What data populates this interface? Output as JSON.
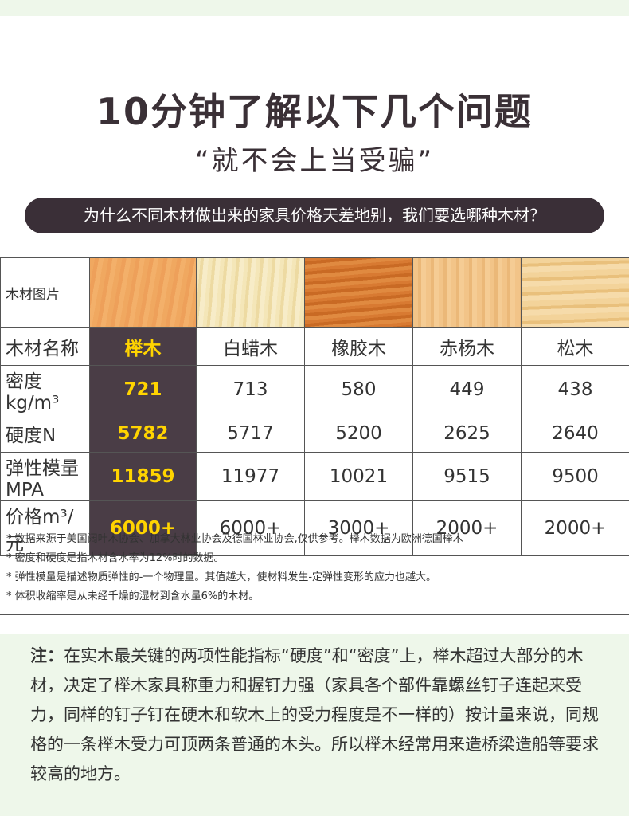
{
  "title": "10分钟了解以下几个问题",
  "subtitle": "“就不会上当受骗”",
  "question": "为什么不同木材做出来的家具价格天差地别，我们要选哪种木材？",
  "table": {
    "row_labels": {
      "image": "木材图片",
      "name": "木材名称",
      "density": "密度kg/m³",
      "hardness": "硬度N",
      "modulus": "弹性模量MPA",
      "price": "价格m³/元"
    },
    "woods": [
      {
        "name": "榉木",
        "density": "721",
        "hardness": "5782",
        "modulus": "11859",
        "price": "6000+",
        "highlight": true,
        "swatch": "beech-wood-texture"
      },
      {
        "name": "白蜡木",
        "density": "713",
        "hardness": "5717",
        "modulus": "11977",
        "price": "6000+",
        "highlight": false,
        "swatch": "ash-wood-texture"
      },
      {
        "name": "橡胶木",
        "density": "580",
        "hardness": "5200",
        "modulus": "10021",
        "price": "3000+",
        "highlight": false,
        "swatch": "rubberwood-texture"
      },
      {
        "name": "赤杨木",
        "density": "449",
        "hardness": "2625",
        "modulus": "9515",
        "price": "2000+",
        "highlight": false,
        "swatch": "alder-wood-texture"
      },
      {
        "name": "松木",
        "density": "438",
        "hardness": "2640",
        "modulus": "9500",
        "price": "2000+",
        "highlight": false,
        "swatch": "pine-wood-texture"
      }
    ]
  },
  "notes": [
    "* 数据来源于美国阔叶木协会、加拿大林业协会及德国林业协会,仅供参考。榉木数据为欧洲德国榉木",
    "* 密度和硬度是指木材含水率为12%时的数据。",
    "* 弹性模量是描述物质弹性的-一个物理量。其值越大，使材料发生-定弹性变形的应力也越大。",
    "* 体积收缩率是从未经千燥的湿材到含水量6%的木材。"
  ],
  "tip": {
    "label": "注：",
    "text": "在实木最关键的两项性能指标“硬度”和“密度”上，榉木超过大部分的木材，决定了榉木家具称重力和握钉力强（家具各个部件靠螺丝钉子连起来受力，同样的钉子钉在硬木和软木上的受力程度是不一样的）按计量来说，同规格的一条榉木受力可顶两条普通的木头。所以榉木经常用来造桥梁造船等要求较高的地方。"
  },
  "colors": {
    "highlight_bg": "#4a3d46",
    "highlight_text": "#ffd400",
    "question_bg": "#3a2f37",
    "tip_bg": "#eef7ea"
  }
}
